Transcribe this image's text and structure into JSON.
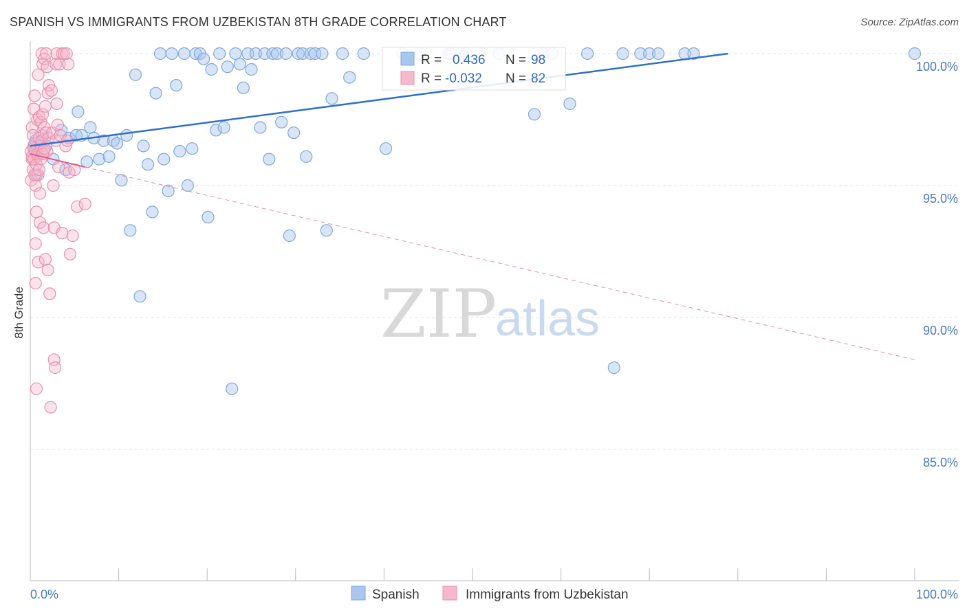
{
  "header": {
    "title": "SPANISH VS IMMIGRANTS FROM UZBEKISTAN 8TH GRADE CORRELATION CHART",
    "source": "Source: ZipAtlas.com"
  },
  "watermark": {
    "zip": "ZIP",
    "atlas": "atlas"
  },
  "legend_box": {
    "rows": [
      {
        "r_label": "R =",
        "r_value": "0.436",
        "n_label": "N =",
        "n_value": "98",
        "color": "#a9c6ee"
      },
      {
        "r_label": "R =",
        "r_value": "-0.032",
        "n_label": "N =",
        "n_value": "82",
        "color": "#f6b8cc"
      }
    ]
  },
  "chart_data": {
    "type": "scatter",
    "title": "SPANISH VS IMMIGRANTS FROM UZBEKISTAN 8TH GRADE CORRELATION CHART",
    "xlabel": "",
    "ylabel": "8th Grade",
    "xlim": [
      0,
      100
    ],
    "ylim": [
      80.3,
      100.6
    ],
    "x_tick_labels": [
      "0.0%",
      "100.0%"
    ],
    "y_ticks": [
      {
        "value": 100,
        "label": "100.0%"
      },
      {
        "value": 95,
        "label": "95.0%"
      },
      {
        "value": 90,
        "label": "90.0%"
      },
      {
        "value": 85,
        "label": "85.0%"
      }
    ],
    "grid": true,
    "legend_position": "bottom-center",
    "series": [
      {
        "name": "Spanish",
        "color": "#a9c6ee",
        "stroke": "#7fa7dd",
        "trend": {
          "x": [
            0,
            78.9
          ],
          "y": [
            96.5,
            100.0
          ],
          "color": "#2f6fcf",
          "style": "solid"
        },
        "points": [
          [
            0.4,
            96.5
          ],
          [
            0.5,
            96.3
          ],
          [
            0.6,
            96.7
          ],
          [
            0.7,
            95.4
          ],
          [
            1.2,
            96.6
          ],
          [
            1.4,
            96.9
          ],
          [
            1.8,
            96.5
          ],
          [
            2.6,
            96.0
          ],
          [
            3.5,
            97.1
          ],
          [
            4.0,
            95.6
          ],
          [
            4.4,
            96.8
          ],
          [
            5.2,
            96.9
          ],
          [
            5.4,
            97.8
          ],
          [
            5.8,
            96.9
          ],
          [
            6.4,
            95.9
          ],
          [
            6.8,
            97.2
          ],
          [
            7.2,
            96.8
          ],
          [
            7.8,
            96.0
          ],
          [
            8.3,
            96.7
          ],
          [
            8.9,
            96.1
          ],
          [
            9.4,
            96.7
          ],
          [
            9.8,
            96.6
          ],
          [
            10.3,
            95.2
          ],
          [
            10.9,
            96.9
          ],
          [
            11.3,
            93.3
          ],
          [
            11.9,
            99.2
          ],
          [
            12.4,
            90.8
          ],
          [
            12.8,
            96.5
          ],
          [
            13.3,
            95.8
          ],
          [
            13.8,
            94.0
          ],
          [
            14.2,
            98.5
          ],
          [
            14.7,
            100.0
          ],
          [
            15.1,
            96.0
          ],
          [
            15.6,
            94.8
          ],
          [
            16.0,
            100.0
          ],
          [
            16.5,
            98.8
          ],
          [
            16.9,
            96.3
          ],
          [
            17.4,
            100.0
          ],
          [
            17.8,
            95.0
          ],
          [
            18.3,
            96.4
          ],
          [
            18.7,
            100.0
          ],
          [
            19.2,
            100.0
          ],
          [
            19.6,
            99.8
          ],
          [
            20.1,
            93.8
          ],
          [
            20.5,
            99.4
          ],
          [
            21.0,
            97.1
          ],
          [
            21.4,
            100.0
          ],
          [
            21.9,
            97.2
          ],
          [
            22.3,
            99.5
          ],
          [
            22.8,
            87.3
          ],
          [
            23.2,
            100.0
          ],
          [
            23.7,
            99.6
          ],
          [
            24.1,
            98.7
          ],
          [
            24.6,
            100.0
          ],
          [
            25.0,
            99.4
          ],
          [
            25.5,
            100.0
          ],
          [
            26.0,
            97.2
          ],
          [
            26.5,
            100.0
          ],
          [
            27.0,
            96.0
          ],
          [
            27.4,
            100.0
          ],
          [
            27.9,
            100.0
          ],
          [
            28.4,
            97.4
          ],
          [
            28.9,
            100.0
          ],
          [
            29.3,
            93.1
          ],
          [
            29.8,
            97.0
          ],
          [
            30.3,
            100.0
          ],
          [
            30.8,
            100.0
          ],
          [
            31.2,
            96.1
          ],
          [
            31.7,
            100.0
          ],
          [
            32.2,
            100.0
          ],
          [
            33.0,
            100.0
          ],
          [
            33.5,
            93.3
          ],
          [
            34.1,
            98.3
          ],
          [
            35.3,
            100.0
          ],
          [
            36.1,
            99.1
          ],
          [
            37.7,
            100.0
          ],
          [
            40.2,
            96.4
          ],
          [
            42.1,
            100.0
          ],
          [
            44.1,
            100.0
          ],
          [
            47.3,
            100.0
          ],
          [
            47.6,
            100.0
          ],
          [
            48.7,
            100.0
          ],
          [
            49.3,
            100.0
          ],
          [
            51.1,
            100.0
          ],
          [
            53.0,
            100.0
          ],
          [
            57.0,
            97.7
          ],
          [
            58.0,
            100.0
          ],
          [
            59.0,
            100.0
          ],
          [
            61.0,
            98.1
          ],
          [
            63.0,
            100.0
          ],
          [
            66.0,
            88.1
          ],
          [
            67.0,
            100.0
          ],
          [
            69.0,
            100.0
          ],
          [
            70.0,
            100.0
          ],
          [
            71.0,
            100.0
          ],
          [
            74.0,
            100.0
          ],
          [
            75.0,
            100.0
          ],
          [
            100.0,
            100.0
          ]
        ]
      },
      {
        "name": "Immigrants from Uzbekistan",
        "color": "#f6b8cc",
        "stroke": "#ec8fac",
        "trend": {
          "x": [
            0,
            6.2
          ],
          "y": [
            96.2,
            95.7
          ],
          "color": "#e5598a",
          "style": "solid"
        },
        "trend_extended": {
          "x": [
            6.2,
            100
          ],
          "y": [
            95.7,
            88.4
          ],
          "color": "#e98aa9",
          "style": "dashed"
        },
        "points": [
          [
            0.1,
            96.3
          ],
          [
            0.1,
            95.2
          ],
          [
            0.2,
            97.2
          ],
          [
            0.2,
            96.0
          ],
          [
            0.3,
            95.6
          ],
          [
            0.3,
            96.9
          ],
          [
            0.4,
            97.9
          ],
          [
            0.4,
            96.4
          ],
          [
            0.5,
            98.4
          ],
          [
            0.5,
            96.6
          ],
          [
            0.6,
            95.0
          ],
          [
            0.6,
            92.8
          ],
          [
            0.6,
            91.3
          ],
          [
            0.7,
            94.0
          ],
          [
            0.7,
            87.3
          ],
          [
            0.8,
            97.5
          ],
          [
            0.8,
            96.1
          ],
          [
            0.9,
            99.2
          ],
          [
            0.9,
            92.1
          ],
          [
            0.9,
            95.4
          ],
          [
            1.0,
            97.6
          ],
          [
            1.0,
            96.8
          ],
          [
            1.1,
            94.7
          ],
          [
            1.1,
            93.6
          ],
          [
            1.2,
            97.4
          ],
          [
            1.2,
            96.5
          ],
          [
            1.3,
            100.0
          ],
          [
            1.3,
            96.7
          ],
          [
            1.4,
            99.6
          ],
          [
            1.4,
            97.7
          ],
          [
            1.5,
            96.3
          ],
          [
            1.5,
            93.4
          ],
          [
            1.6,
            99.8
          ],
          [
            1.6,
            97.2
          ],
          [
            1.7,
            98.0
          ],
          [
            1.7,
            92.2
          ],
          [
            1.8,
            100.0
          ],
          [
            1.8,
            97.0
          ],
          [
            1.9,
            99.5
          ],
          [
            1.9,
            96.3
          ],
          [
            2.0,
            98.5
          ],
          [
            2.0,
            91.8
          ],
          [
            2.1,
            98.8
          ],
          [
            2.1,
            96.8
          ],
          [
            2.2,
            90.9
          ],
          [
            2.3,
            86.6
          ],
          [
            2.4,
            98.6
          ],
          [
            2.5,
            97.0
          ],
          [
            2.6,
            95.0
          ],
          [
            2.7,
            88.4
          ],
          [
            2.7,
            93.4
          ],
          [
            2.8,
            88.1
          ],
          [
            2.9,
            99.6
          ],
          [
            2.9,
            96.7
          ],
          [
            3.0,
            100.0
          ],
          [
            3.0,
            98.1
          ],
          [
            3.1,
            97.3
          ],
          [
            3.2,
            95.7
          ],
          [
            3.3,
            99.6
          ],
          [
            3.4,
            96.9
          ],
          [
            3.6,
            100.0
          ],
          [
            3.6,
            93.2
          ],
          [
            3.8,
            100.0
          ],
          [
            4.0,
            96.5
          ],
          [
            4.1,
            100.0
          ],
          [
            4.2,
            96.7
          ],
          [
            4.3,
            99.6
          ],
          [
            4.4,
            95.5
          ],
          [
            4.5,
            92.4
          ],
          [
            4.8,
            93.1
          ],
          [
            5.0,
            95.6
          ],
          [
            5.3,
            94.2
          ],
          [
            6.2,
            94.3
          ],
          [
            0.2,
            96.1
          ],
          [
            0.4,
            96.0
          ],
          [
            0.5,
            95.4
          ],
          [
            0.7,
            95.8
          ],
          [
            0.8,
            96.2
          ],
          [
            1.0,
            95.6
          ],
          [
            1.2,
            96.0
          ],
          [
            1.4,
            96.2
          ],
          [
            1.6,
            96.4
          ]
        ]
      }
    ]
  }
}
